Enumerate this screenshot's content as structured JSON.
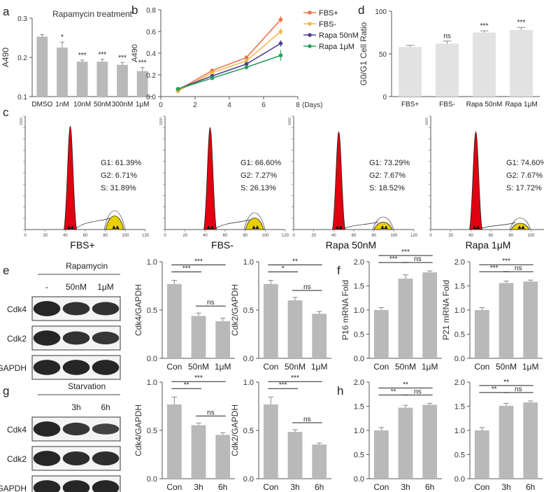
{
  "panel_labels": {
    "a": "a",
    "b": "b",
    "c": "c",
    "d": "d",
    "e": "e",
    "f": "f",
    "g": "g",
    "h": "h"
  },
  "blots": {
    "e": {
      "treatment": "Rapamycin",
      "lanes": [
        "-",
        "50nM",
        "1μM"
      ],
      "rows": [
        "Cdk4",
        "Cdk2",
        "GAPDH"
      ]
    },
    "g": {
      "treatment": "Starvation",
      "lanes": [
        "",
        "3h",
        "6h"
      ],
      "rows": [
        "Cdk4",
        "Cdk2",
        "GAPDH"
      ]
    }
  },
  "colors": {
    "bar": "#b9b9b9",
    "bar_light": "#e2e2e2",
    "fbs_plus": "#e8734a",
    "fbs_minus": "#f2b84b",
    "rapa50": "#4b3f8f",
    "rapa1": "#2aa05a",
    "g1_peak": "#e0000f",
    "s_peak": "#e8d000"
  },
  "chart_data": [
    {
      "id": "a",
      "type": "bar",
      "title": "Rapamycin treatment",
      "ylabel": "A490",
      "xlabel": "",
      "categories": [
        "DMSO",
        "1nM",
        "10nM",
        "50nM",
        "300nM",
        "1μM"
      ],
      "values": [
        0.253,
        0.225,
        0.189,
        0.189,
        0.181,
        0.165
      ],
      "errors": [
        0.005,
        0.014,
        0.004,
        0.006,
        0.006,
        0.009
      ],
      "ylim": [
        0.1,
        0.3
      ],
      "yticks": [
        "0.1",
        "0.2",
        "0.3"
      ],
      "significance": [
        "",
        "*",
        "***",
        "***",
        "***",
        "***"
      ]
    },
    {
      "id": "b",
      "type": "line",
      "xlabel": "(Days)",
      "ylabel": "A490",
      "xlim": [
        0,
        8
      ],
      "ylim": [
        0,
        0.8
      ],
      "xticks": [
        "0",
        "2",
        "4",
        "6",
        "8"
      ],
      "yticks": [
        "0.0",
        "0.2",
        "0.4",
        "0.6",
        "0.8"
      ],
      "x": [
        1,
        3,
        5,
        7
      ],
      "series": [
        {
          "name": "FBS+",
          "values": [
            0.06,
            0.24,
            0.36,
            0.71
          ],
          "errors": [
            0.01,
            0.01,
            0.02,
            0.03
          ]
        },
        {
          "name": "FBS-",
          "values": [
            0.05,
            0.22,
            0.33,
            0.6
          ],
          "errors": [
            0.01,
            0.01,
            0.02,
            0.03
          ]
        },
        {
          "name": "Rapa 50nM",
          "values": [
            0.07,
            0.19,
            0.3,
            0.49
          ],
          "errors": [
            0.01,
            0.01,
            0.02,
            0.03
          ]
        },
        {
          "name": "Rapa 1μM",
          "values": [
            0.07,
            0.17,
            0.27,
            0.38
          ],
          "errors": [
            0.02,
            0.01,
            0.02,
            0.05
          ]
        }
      ]
    },
    {
      "id": "d",
      "type": "bar",
      "ylabel": "G0/G1 Cell Ratio",
      "xlabel": "",
      "categories": [
        "FBS+",
        "FBS-",
        "Rapa 50nM",
        "Rapa 1μM"
      ],
      "values": [
        58,
        62,
        75,
        78
      ],
      "errors": [
        2,
        3,
        2,
        3
      ],
      "ylim": [
        0,
        100
      ],
      "yticks": [
        "0",
        "50",
        "100"
      ],
      "significance": [
        "",
        "ns",
        "***",
        "***"
      ]
    },
    {
      "id": "c",
      "type": "histogram",
      "xticks": [
        "0",
        "20",
        "40",
        "60",
        "80",
        "100",
        "120"
      ],
      "yticks_max": "1000",
      "panels": [
        {
          "label": "FBS+",
          "g1": "G1: 61.39%",
          "g2": "G2: 6.71%",
          "s": "S: 31.89%"
        },
        {
          "label": "FBS-",
          "g1": "G1: 66.60%",
          "g2": "G2: 7.27%",
          "s": "S: 26.13%"
        },
        {
          "label": "Rapa 50nM",
          "g1": "G1: 73.29%",
          "g2": "G2: 7.67%",
          "s": "S: 18.52%"
        },
        {
          "label": "Rapa 1μM",
          "g1": "G1: 74.60%",
          "g2": "G2: 7.67%",
          "s": "S: 17.72%"
        }
      ]
    },
    {
      "id": "e1",
      "type": "bar",
      "ylabel": "Cdk4/GAPDH",
      "categories": [
        "Con",
        "50nM",
        "1μM"
      ],
      "values": [
        1.0,
        0.57,
        0.5
      ],
      "errors": [
        0.05,
        0.04,
        0.04
      ],
      "ylim": [
        0,
        1.3
      ],
      "yticks": [
        "0.0",
        "0.5",
        "1.0"
      ],
      "comparisons": [
        {
          "a": 0,
          "b": 1,
          "label": "***",
          "level": 0
        },
        {
          "a": 0,
          "b": 2,
          "label": "***",
          "level": 1
        },
        {
          "a": 1,
          "b": 2,
          "label": "ns",
          "level": -1
        }
      ]
    },
    {
      "id": "e2",
      "type": "bar",
      "ylabel": "Cdk2/GAPDH",
      "categories": [
        "Con",
        "50nM",
        "1μM"
      ],
      "values": [
        1.0,
        0.78,
        0.6
      ],
      "errors": [
        0.05,
        0.04,
        0.03
      ],
      "ylim": [
        0,
        1.3
      ],
      "yticks": [
        "0.0",
        "0.5",
        "1.0"
      ],
      "comparisons": [
        {
          "a": 0,
          "b": 1,
          "label": "*",
          "level": 0
        },
        {
          "a": 0,
          "b": 2,
          "label": "**",
          "level": 1
        },
        {
          "a": 1,
          "b": 2,
          "label": "ns",
          "level": -1
        }
      ]
    },
    {
      "id": "f1",
      "type": "bar",
      "ylabel": "P16 mRNA Fold",
      "categories": [
        "Con",
        "50nM",
        "1μM"
      ],
      "values": [
        1.0,
        1.65,
        1.78
      ],
      "errors": [
        0.05,
        0.08,
        0.03
      ],
      "ylim": [
        0,
        2.0
      ],
      "yticks": [
        "0.0",
        "0.5",
        "1.0",
        "1.5",
        "2.0"
      ],
      "comparisons": [
        {
          "a": 0,
          "b": 1,
          "label": "***",
          "level": 0
        },
        {
          "a": 0,
          "b": 2,
          "label": "***",
          "level": 1
        },
        {
          "a": 1,
          "b": 2,
          "label": "ns",
          "level": 0
        }
      ]
    },
    {
      "id": "f2",
      "type": "bar",
      "ylabel": "P21 mRNA Fold",
      "categories": [
        "Con",
        "50nM",
        "1μM"
      ],
      "values": [
        1.0,
        1.56,
        1.59
      ],
      "errors": [
        0.05,
        0.04,
        0.03
      ],
      "ylim": [
        0,
        2.0
      ],
      "yticks": [
        "0.0",
        "0.5",
        "1.0",
        "1.5",
        "2.0"
      ],
      "comparisons": [
        {
          "a": 0,
          "b": 1,
          "label": "***",
          "level": 0
        },
        {
          "a": 0,
          "b": 2,
          "label": "***",
          "level": 1
        },
        {
          "a": 1,
          "b": 2,
          "label": "ns",
          "level": 0
        }
      ]
    },
    {
      "id": "g1",
      "type": "bar",
      "ylabel": "Cdk4/GAPDH",
      "categories": [
        "Con",
        "3h",
        "6h"
      ],
      "values": [
        1.0,
        0.72,
        0.59
      ],
      "errors": [
        0.1,
        0.03,
        0.03
      ],
      "ylim": [
        0,
        1.3
      ],
      "yticks": [
        "0.0",
        "0.5",
        "1.0"
      ],
      "comparisons": [
        {
          "a": 0,
          "b": 1,
          "label": "**",
          "level": 0
        },
        {
          "a": 0,
          "b": 2,
          "label": "***",
          "level": 1
        },
        {
          "a": 1,
          "b": 2,
          "label": "ns",
          "level": -1
        }
      ]
    },
    {
      "id": "g2",
      "type": "bar",
      "ylabel": "Cdk2/GAPDH",
      "categories": [
        "Con",
        "3h",
        "6h"
      ],
      "values": [
        1.0,
        0.63,
        0.46
      ],
      "errors": [
        0.1,
        0.03,
        0.02
      ],
      "ylim": [
        0,
        1.3
      ],
      "yticks": [
        "0.0",
        "0.5",
        "1.0"
      ],
      "comparisons": [
        {
          "a": 0,
          "b": 1,
          "label": "***",
          "level": 0
        },
        {
          "a": 0,
          "b": 2,
          "label": "***",
          "level": 1
        },
        {
          "a": 1,
          "b": 2,
          "label": "ns",
          "level": -1
        }
      ]
    },
    {
      "id": "h1",
      "type": "bar",
      "ylabel": "",
      "categories": [
        "Con",
        "3h",
        "6h"
      ],
      "values": [
        1.0,
        1.47,
        1.53
      ],
      "errors": [
        0.06,
        0.05,
        0.03
      ],
      "ylim": [
        0,
        2.0
      ],
      "yticks": [
        "0.0",
        "0.5",
        "1.0",
        "1.5",
        "2.0"
      ],
      "comparisons": [
        {
          "a": 0,
          "b": 1,
          "label": "**",
          "level": 0
        },
        {
          "a": 0,
          "b": 2,
          "label": "**",
          "level": 1
        },
        {
          "a": 1,
          "b": 2,
          "label": "ns",
          "level": 0
        }
      ]
    },
    {
      "id": "h2",
      "type": "bar",
      "ylabel": "",
      "categories": [
        "Con",
        "3h",
        "6h"
      ],
      "values": [
        1.0,
        1.51,
        1.58
      ],
      "errors": [
        0.06,
        0.05,
        0.03
      ],
      "ylim": [
        0,
        2.0
      ],
      "yticks": [
        "0.0",
        "0.5",
        "1.0",
        "1.5",
        "2.0"
      ],
      "comparisons": [
        {
          "a": 0,
          "b": 1,
          "label": "**",
          "level": 0
        },
        {
          "a": 0,
          "b": 2,
          "label": "**",
          "level": 1
        },
        {
          "a": 1,
          "b": 2,
          "label": "ns",
          "level": 0
        }
      ]
    }
  ]
}
